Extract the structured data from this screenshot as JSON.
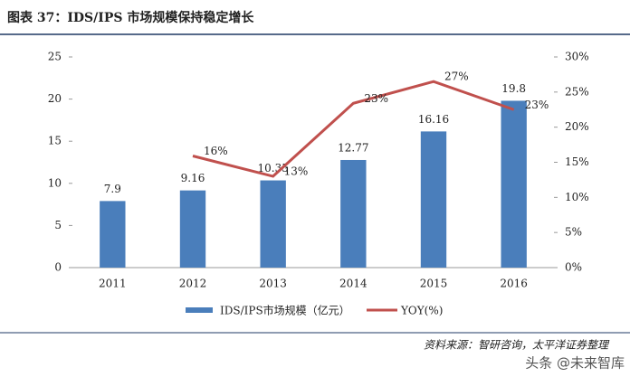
{
  "chart_data": {
    "type": "bar",
    "title": "图表 37：IDS/IPS 市场规模保持稳定增长",
    "categories": [
      "2011",
      "2012",
      "2013",
      "2014",
      "2015",
      "2016"
    ],
    "series": [
      {
        "name": "IDS/IPS市场规模（亿元）",
        "type": "bar",
        "color": "#4a7ebb",
        "values": [
          7.9,
          9.16,
          10.35,
          12.77,
          16.16,
          19.8
        ]
      },
      {
        "name": "YOY(%)",
        "type": "line",
        "axis": "y2",
        "color": "#c0504d",
        "values": [
          null,
          15.9,
          13.0,
          23.4,
          26.5,
          22.5
        ],
        "value_labels": [
          null,
          "16%",
          "13%",
          "23%",
          "27%",
          "23%"
        ]
      }
    ],
    "ylim": [
      0,
      25
    ],
    "yticks": [
      0,
      5,
      10,
      15,
      20,
      25
    ],
    "y2lim": [
      0,
      30
    ],
    "y2ticks": [
      {
        "value": 0,
        "label": "0%"
      },
      {
        "value": 5,
        "label": "5%"
      },
      {
        "value": 10,
        "label": "10%"
      },
      {
        "value": 15,
        "label": "15%"
      },
      {
        "value": 20,
        "label": "20%"
      },
      {
        "value": 25,
        "label": "25%"
      },
      {
        "value": 30,
        "label": "30%"
      }
    ],
    "grid": false,
    "source": "资料来源：智研咨询，太平洋证券整理",
    "watermark": "头条 @未来智库"
  }
}
